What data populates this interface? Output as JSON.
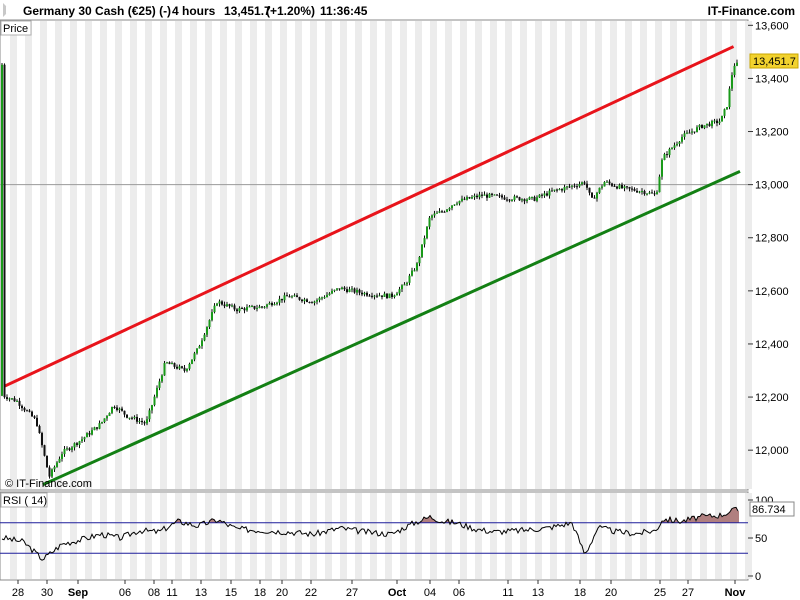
{
  "header": {
    "instrument": "Germany 30 Cash (€25) (-)",
    "timeframe": "4 hours",
    "last": "13,451.7",
    "change": "(+1.20%)",
    "time": "11:36:45",
    "brand": "IT-Finance.com"
  },
  "price_panel": {
    "label": "Price",
    "watermark": "© IT-Finance.com",
    "last_badge": "13,451.7"
  },
  "rsi_panel": {
    "label": "RSI ( 14)",
    "value_badge": "86.734"
  },
  "colors": {
    "upper_channel": "#e8141b",
    "lower_channel": "#138014",
    "candle_up": "#1a9a1a",
    "candle_down": "#111111",
    "rsi_line": "#000000",
    "rsi_levels": "#1f1f9c",
    "rsi_overbought_fill": "#b07f7f",
    "last_badge": "#f2d22e"
  },
  "chart_data": [
    {
      "type": "candlestick",
      "title": "Germany 30 Cash (€25) (-)",
      "ylim": [
        11850,
        13620
      ],
      "y_ticks": [
        12000,
        12200,
        12400,
        12600,
        12800,
        13000,
        13200,
        13400,
        13600
      ],
      "y_tick_labels": [
        "12,000",
        "12,200",
        "12,400",
        "12,600",
        "12,800",
        "13,000",
        "13,200",
        "13,400",
        "13,600"
      ],
      "x_tick_labels": [
        "28",
        "30",
        "Sep",
        "06",
        "08",
        "11",
        "13",
        "15",
        "18",
        "20",
        "22",
        "27",
        "Oct",
        "04",
        "06",
        "11",
        "13",
        "18",
        "20",
        "25",
        "27",
        "Nov"
      ],
      "series": [
        {
          "kind": "price",
          "points": [
            [
              0,
              12205
            ],
            [
              2,
              12185
            ],
            [
              5,
              12110
            ],
            [
              7,
              11900
            ],
            [
              9,
              11990
            ],
            [
              12,
              12040
            ],
            [
              15,
              12100
            ],
            [
              17,
              12170
            ],
            [
              19,
              12130
            ],
            [
              22,
              12100
            ],
            [
              25,
              12330
            ],
            [
              28,
              12300
            ],
            [
              30,
              12380
            ],
            [
              33,
              12560
            ],
            [
              36,
              12530
            ],
            [
              40,
              12540
            ],
            [
              44,
              12580
            ],
            [
              48,
              12560
            ],
            [
              52,
              12610
            ],
            [
              56,
              12590
            ],
            [
              60,
              12580
            ],
            [
              62,
              12620
            ],
            [
              64,
              12700
            ],
            [
              66,
              12880
            ],
            [
              68,
              12900
            ],
            [
              70,
              12935
            ],
            [
              74,
              12960
            ],
            [
              78,
              12950
            ],
            [
              82,
              12945
            ],
            [
              85,
              12975
            ],
            [
              88,
              12995
            ],
            [
              90,
              13010
            ],
            [
              91,
              12940
            ],
            [
              93,
              13010
            ],
            [
              96,
              12985
            ],
            [
              99,
              12975
            ],
            [
              101,
              12960
            ],
            [
              102,
              13100
            ],
            [
              105,
              13180
            ],
            [
              108,
              13220
            ],
            [
              111,
              13240
            ],
            [
              112,
              13300
            ],
            [
              113,
              13451.7
            ]
          ]
        }
      ],
      "channels": [
        {
          "name": "upper",
          "from": [
            0,
            12240
          ],
          "to": [
            113,
            13520
          ]
        },
        {
          "name": "lower",
          "from": [
            6,
            11870
          ],
          "to": [
            114,
            13050
          ]
        }
      ],
      "last_value": 13451.7,
      "grid": "vertical bands"
    },
    {
      "type": "line",
      "title": "RSI ( 14)",
      "ylim": [
        0,
        100
      ],
      "y_ticks": [
        0,
        50,
        100
      ],
      "reference_levels": [
        30,
        70
      ],
      "last_value": 86.734,
      "series": [
        {
          "name": "RSI ( 14)",
          "points": [
            [
              0,
              50
            ],
            [
              3,
              45
            ],
            [
              6,
              22
            ],
            [
              9,
              42
            ],
            [
              12,
              48
            ],
            [
              15,
              55
            ],
            [
              18,
              50
            ],
            [
              21,
              60
            ],
            [
              24,
              58
            ],
            [
              27,
              72
            ],
            [
              30,
              66
            ],
            [
              33,
              74
            ],
            [
              36,
              62
            ],
            [
              40,
              60
            ],
            [
              44,
              58
            ],
            [
              48,
              55
            ],
            [
              52,
              63
            ],
            [
              56,
              58
            ],
            [
              60,
              55
            ],
            [
              63,
              68
            ],
            [
              66,
              78
            ],
            [
              68,
              72
            ],
            [
              70,
              70
            ],
            [
              73,
              62
            ],
            [
              76,
              58
            ],
            [
              80,
              60
            ],
            [
              84,
              63
            ],
            [
              88,
              70
            ],
            [
              90,
              28
            ],
            [
              92,
              64
            ],
            [
              95,
              58
            ],
            [
              98,
              56
            ],
            [
              101,
              60
            ],
            [
              102,
              75
            ],
            [
              105,
              72
            ],
            [
              108,
              78
            ],
            [
              111,
              80
            ],
            [
              113,
              86.734
            ]
          ]
        }
      ]
    }
  ]
}
